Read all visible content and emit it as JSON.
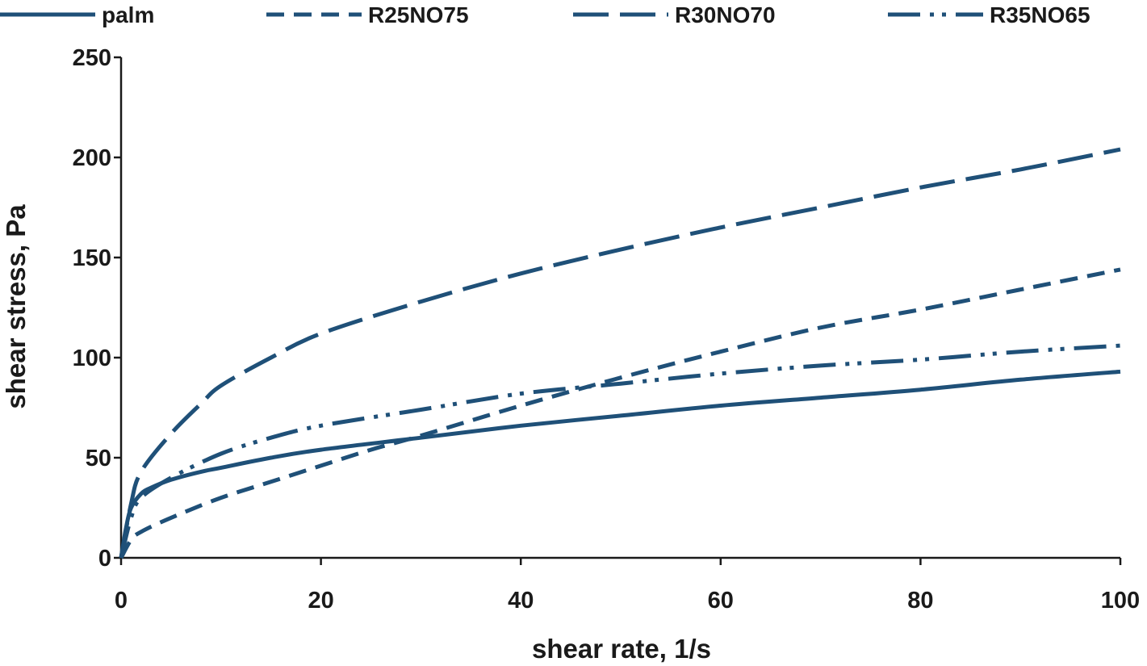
{
  "chart_data": {
    "type": "line",
    "title": "",
    "xlabel": "shear rate, 1/s",
    "ylabel": "shear stress, Pa",
    "xlim": [
      0,
      100
    ],
    "ylim": [
      0,
      250
    ],
    "xticks": [
      0,
      20,
      40,
      60,
      80,
      100
    ],
    "yticks": [
      0,
      50,
      100,
      150,
      200,
      250
    ],
    "grid": false,
    "legend_position": "top",
    "line_color": "#1f5078",
    "series": [
      {
        "name": "palm",
        "style": "solid",
        "x": [
          0,
          0.5,
          1,
          2,
          3,
          5,
          8,
          10,
          15,
          20,
          30,
          40,
          50,
          60,
          70,
          80,
          90,
          100
        ],
        "y": [
          0,
          15,
          25,
          32,
          35,
          39,
          43,
          45,
          50,
          54,
          60,
          66,
          71,
          76,
          80,
          84,
          89,
          93
        ]
      },
      {
        "name": "R25NO75",
        "style": "dash",
        "x": [
          0,
          1,
          2,
          5,
          10,
          15,
          20,
          25,
          30,
          40,
          50,
          60,
          70,
          80,
          90,
          100
        ],
        "y": [
          0,
          9,
          13,
          20,
          30,
          38,
          46,
          54,
          61,
          76,
          90,
          103,
          115,
          124,
          134,
          144
        ]
      },
      {
        "name": "R30NO70",
        "style": "long-dash",
        "x": [
          0,
          1,
          2,
          5,
          8,
          10,
          15,
          20,
          30,
          40,
          50,
          60,
          70,
          80,
          90,
          100
        ],
        "y": [
          0,
          27,
          43,
          62,
          77,
          86,
          100,
          112,
          128,
          142,
          154,
          165,
          175,
          185,
          194,
          204
        ]
      },
      {
        "name": "R35NO65",
        "style": "dash-dot-dot",
        "x": [
          0,
          1,
          2,
          5,
          10,
          15,
          20,
          30,
          40,
          50,
          60,
          70,
          80,
          90,
          100
        ],
        "y": [
          0,
          20,
          30,
          40,
          52,
          60,
          66,
          74,
          82,
          87,
          92,
          96,
          99,
          103,
          106
        ]
      }
    ]
  }
}
